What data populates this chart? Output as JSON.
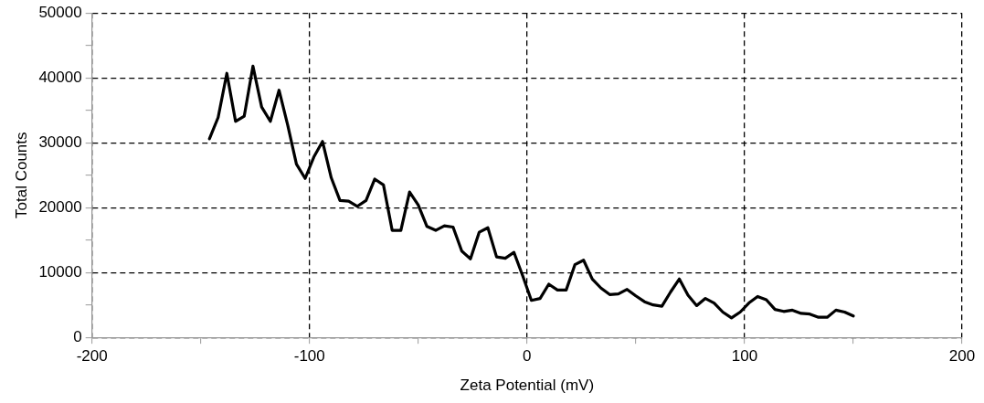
{
  "chart_data": {
    "type": "line",
    "xlabel": "Zeta Potential (mV)",
    "ylabel": "Total Counts",
    "xlim": [
      -200,
      200
    ],
    "xticks": [
      -200,
      {
        "value": -150,
        "label": null
      },
      -100,
      {
        "value": -50,
        "label": null
      },
      0,
      {
        "value": 50,
        "label": null
      },
      100,
      {
        "value": 150,
        "label": null
      },
      200
    ],
    "ylim": [
      0,
      50000
    ],
    "yticks": [
      0,
      {
        "value": 5000,
        "label": null
      },
      10000,
      {
        "value": 15000,
        "label": null
      },
      20000,
      {
        "value": 25000,
        "label": null
      },
      30000,
      {
        "value": 35000,
        "label": null
      },
      40000,
      {
        "value": 45000,
        "label": null
      },
      50000
    ],
    "grid": true,
    "legend": false,
    "marker": "none",
    "line_style": "solid",
    "series": [
      {
        "color": "#000000",
        "x": [
          -146,
          -142,
          -138,
          -134,
          -130,
          -126,
          -122,
          -118,
          -114,
          -110,
          -106,
          -102,
          -98,
          -94,
          -90,
          -86,
          -82,
          -78,
          -74,
          -70,
          -66,
          -62,
          -58,
          -54,
          -50,
          -46,
          -42,
          -38,
          -34,
          -30,
          -26,
          -22,
          -18,
          -14,
          -10,
          -6,
          -2,
          2,
          6,
          10,
          14,
          18,
          22,
          26,
          30,
          34,
          38,
          42,
          46,
          50,
          54,
          58,
          62,
          66,
          70,
          74,
          78,
          82,
          86,
          90,
          94,
          98,
          102,
          106,
          110,
          114,
          118,
          122,
          126,
          130,
          134,
          138,
          142,
          146,
          150
        ],
        "values": [
          30600,
          33900,
          40700,
          33300,
          34100,
          41800,
          35500,
          33300,
          38100,
          32700,
          26700,
          24500,
          27800,
          30200,
          24600,
          21100,
          21000,
          20200,
          21100,
          24400,
          23500,
          16500,
          16500,
          22400,
          20400,
          17100,
          16500,
          17200,
          17000,
          13300,
          12100,
          16200,
          16900,
          12400,
          12200,
          13100,
          9500,
          5700,
          6000,
          8200,
          7300,
          7300,
          11200,
          11900,
          9000,
          7600,
          6600,
          6700,
          7400,
          6400,
          5500,
          5000,
          4800,
          7000,
          9000,
          6500,
          4900,
          6000,
          5300,
          3900,
          3000,
          3900,
          5300,
          6300,
          5800,
          4300,
          4000,
          4200,
          3700,
          3600,
          3100,
          3100,
          4200,
          3900,
          3300
        ]
      }
    ]
  }
}
